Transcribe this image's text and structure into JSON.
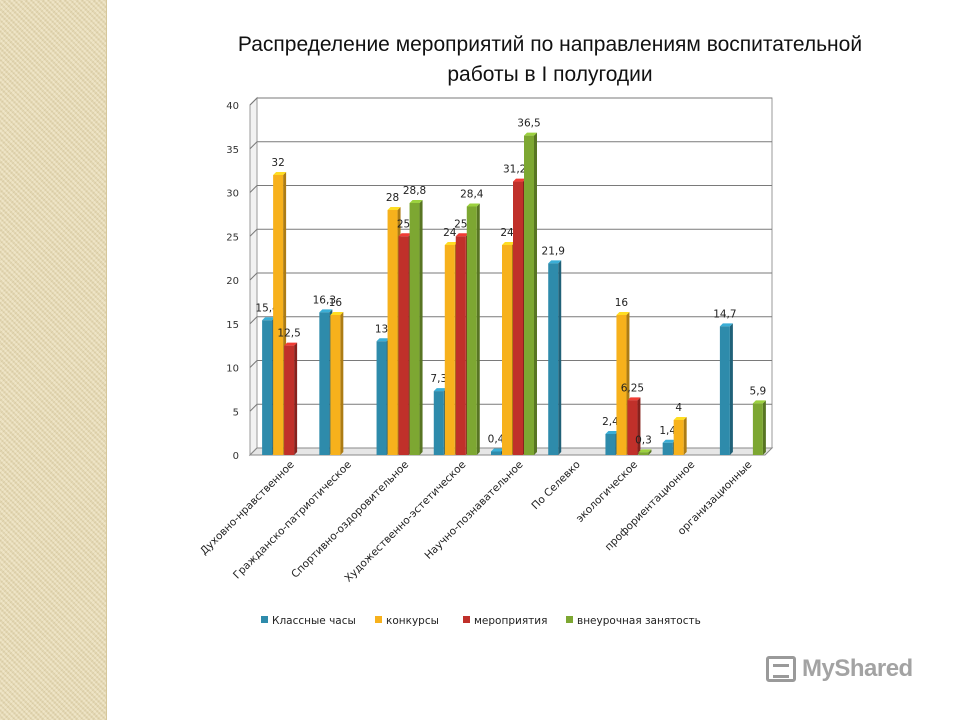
{
  "chart_data": {
    "type": "bar",
    "title": "Распределение мероприятий по направлениям воспитательной работы в I полугодии",
    "title_lines": [
      "Распределение мероприятий по направлениям воспитательной",
      "работы в I полугодии"
    ],
    "categories": [
      "Духовно-нравственное",
      "Гражданско-патриотическое",
      "Спортивно-оздоровительное",
      "Художественно-эстетическое",
      "Научно-познавательное",
      "По Селевко",
      "экологическое",
      "профориентационное",
      "организационные"
    ],
    "series": [
      {
        "name": "Классные часы",
        "color": "#2e8bab",
        "values": [
          15.4,
          16.3,
          13,
          7.3,
          0.4,
          21.9,
          2.4,
          1.4,
          14.7
        ],
        "labels": [
          "15,4",
          "16,3",
          "13",
          "7,3",
          "0,4",
          "21,9",
          "2,4",
          "1,4",
          "14,7"
        ]
      },
      {
        "name": "конкурсы",
        "color": "#f7b11c",
        "values": [
          32,
          16,
          28,
          24,
          24,
          null,
          16,
          4,
          null
        ],
        "labels": [
          "32",
          "16",
          "28",
          "24",
          "24",
          "",
          "16",
          "4",
          ""
        ]
      },
      {
        "name": "мероприятия",
        "color": "#c0302a",
        "values": [
          12.5,
          null,
          25,
          25,
          31.25,
          null,
          6.25,
          null,
          null
        ],
        "labels": [
          "12,5",
          "",
          "25",
          "25",
          "31,25",
          "",
          "6,25",
          "",
          ""
        ]
      },
      {
        "name": "внеурочная занятость",
        "color": "#7da732",
        "values": [
          null,
          null,
          28.8,
          28.4,
          36.5,
          null,
          0.3,
          null,
          5.9
        ],
        "labels": [
          "",
          "",
          "28,8",
          "28,4",
          "36,5",
          "",
          "0,3",
          "",
          "5,9"
        ]
      }
    ],
    "ylim": [
      0,
      40
    ],
    "yticks": [
      "0",
      "5",
      "10",
      "15",
      "20",
      "25",
      "30",
      "35",
      "40"
    ],
    "grid": true,
    "legend_position": "bottom"
  },
  "watermark": {
    "text": "MyShared",
    "icon": "slideshow-icon"
  }
}
